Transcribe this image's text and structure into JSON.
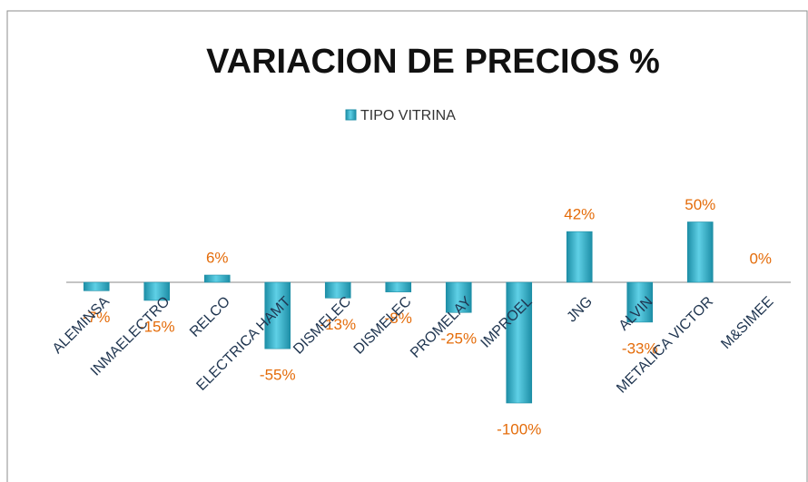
{
  "chart_data": {
    "type": "bar",
    "title": "VARIACION DE PRECIOS %",
    "categories": [
      "ALEMINSA",
      "INMAELECTRO",
      "RELCO",
      "ELECTRICA HAMT",
      "DISMELEC",
      "DISMELEC",
      "PROMELAY",
      "IMPROEL",
      "JNG",
      "ALVIN",
      "METALICA VICTOR",
      "M&SIMEE"
    ],
    "series": [
      {
        "name": "TIPO VITRINA",
        "color": "#31b6d0",
        "values": [
          -7,
          -15,
          6,
          -55,
          -13,
          -8,
          -25,
          -100,
          42,
          -33,
          50,
          0
        ],
        "value_labels": [
          "-7%",
          "-15%",
          "6%",
          "-55%",
          "-13%",
          "-8%",
          "-25%",
          "-100%",
          "42%",
          "-33%",
          "50%",
          "0%"
        ]
      }
    ]
  }
}
